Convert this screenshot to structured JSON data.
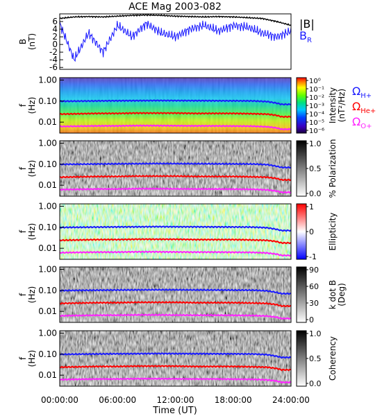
{
  "figure": {
    "title": "ACE Mag 2003-082",
    "xlabel": "Time (UT)",
    "xticks": [
      "00:00:00",
      "06:00:00",
      "12:00:00",
      "18:00:00",
      "24:00:00"
    ],
    "colors": {
      "B_total": "#000000",
      "B_R": "#1a1aff",
      "omega_H": "#1a1aff",
      "omega_He": "#ff0000",
      "omega_O": "#ff22ff"
    },
    "legend": {
      "B_total": "|B|",
      "B_R": "B",
      "B_R_sub": "R",
      "omega_symbol": "Ω",
      "omega_H_sub": "H+",
      "omega_He_sub": "He+",
      "omega_O_sub": "O+"
    }
  },
  "chart_data": [
    {
      "type": "line",
      "ylabel": "B",
      "yunit": "(nT)",
      "ylim": [
        -6.5,
        8
      ],
      "yticks": [
        "6",
        "4",
        "2",
        "0",
        "-2",
        "-4",
        "-6"
      ],
      "x": [
        0,
        1.5,
        3,
        4.5,
        6,
        7.5,
        9,
        10.5,
        12,
        13.5,
        15,
        16.5,
        18,
        19.5,
        21,
        22.5,
        24
      ],
      "series": [
        {
          "legend": "|B|",
          "values": [
            6.8,
            7.2,
            7.3,
            7.2,
            7.4,
            7.6,
            7.7,
            7.6,
            7.4,
            7.3,
            7.2,
            7.3,
            7.2,
            7.0,
            6.8,
            6.0,
            5.0
          ]
        },
        {
          "legend": "B_R",
          "values": [
            5.5,
            -4.0,
            3.0,
            -2.0,
            5.0,
            2.0,
            5.5,
            3.0,
            2.0,
            4.0,
            5.0,
            3.5,
            5.0,
            4.5,
            3.0,
            2.0,
            3.5
          ]
        }
      ]
    },
    {
      "type": "heatmap",
      "ylabel": "f",
      "yunit": "(Hz)",
      "yscale": "log",
      "ylim": [
        0.003,
        1.3
      ],
      "yticks": [
        "1.00",
        "0.10",
        "0.01"
      ],
      "colorbar_label": "Intensity",
      "colorbar_unit": "(nT²/Hz)",
      "colorbar_ticks": [
        "10⁰",
        "10⁻¹",
        "10⁻²",
        "10⁻³",
        "10⁻⁴",
        "10⁻⁵",
        "10⁻⁶"
      ],
      "colormap": "rainbow"
    },
    {
      "type": "heatmap",
      "ylabel": "f",
      "yunit": "(Hz)",
      "yscale": "log",
      "ylim": [
        0.003,
        1.3
      ],
      "yticks": [
        "1.00",
        "0.10",
        "0.01"
      ],
      "colorbar_label": "% Polarization",
      "colorbar_ticks": [
        "1.0",
        "0.5",
        "0.0"
      ],
      "colormap": "gray"
    },
    {
      "type": "heatmap",
      "ylabel": "f",
      "yunit": "(Hz)",
      "yscale": "log",
      "ylim": [
        0.003,
        1.3
      ],
      "yticks": [
        "1.00",
        "0.10",
        "0.01"
      ],
      "colorbar_label": "Ellipticity",
      "colorbar_ticks": [
        "1",
        "0",
        "-1"
      ],
      "colormap": "bwr"
    },
    {
      "type": "heatmap",
      "ylabel": "f",
      "yunit": "(Hz)",
      "yscale": "log",
      "ylim": [
        0.003,
        1.3
      ],
      "yticks": [
        "1.00",
        "0.10",
        "0.01"
      ],
      "colorbar_label": "k dot B",
      "colorbar_unit": "(Deg)",
      "colorbar_ticks": [
        "90",
        "60",
        "30",
        "0"
      ],
      "colormap": "gray"
    },
    {
      "type": "heatmap",
      "ylabel": "f",
      "yunit": "(Hz)",
      "yscale": "log",
      "ylim": [
        0.003,
        1.3
      ],
      "yticks": [
        "1.00",
        "0.10",
        "0.01"
      ],
      "colorbar_label": "Coherency",
      "colorbar_ticks": [
        "1.0",
        "0.5",
        "0.0"
      ],
      "colormap": "gray"
    }
  ],
  "gyrofrequency_lines": {
    "x": [
      0,
      2,
      4,
      6,
      8,
      10,
      12,
      14,
      16,
      18,
      20,
      21.5,
      22.5,
      23,
      24
    ],
    "omega_H": [
      0.098,
      0.1,
      0.102,
      0.104,
      0.105,
      0.107,
      0.106,
      0.105,
      0.104,
      0.103,
      0.102,
      0.095,
      0.08,
      0.07,
      0.07
    ],
    "omega_He": [
      0.024,
      0.025,
      0.026,
      0.026,
      0.027,
      0.027,
      0.027,
      0.026,
      0.026,
      0.026,
      0.025,
      0.024,
      0.021,
      0.018,
      0.018
    ],
    "omega_O": [
      0.0062,
      0.0064,
      0.0066,
      0.0066,
      0.0068,
      0.0068,
      0.0067,
      0.0066,
      0.0066,
      0.0065,
      0.0064,
      0.006,
      0.0053,
      0.0046,
      0.0046
    ]
  }
}
